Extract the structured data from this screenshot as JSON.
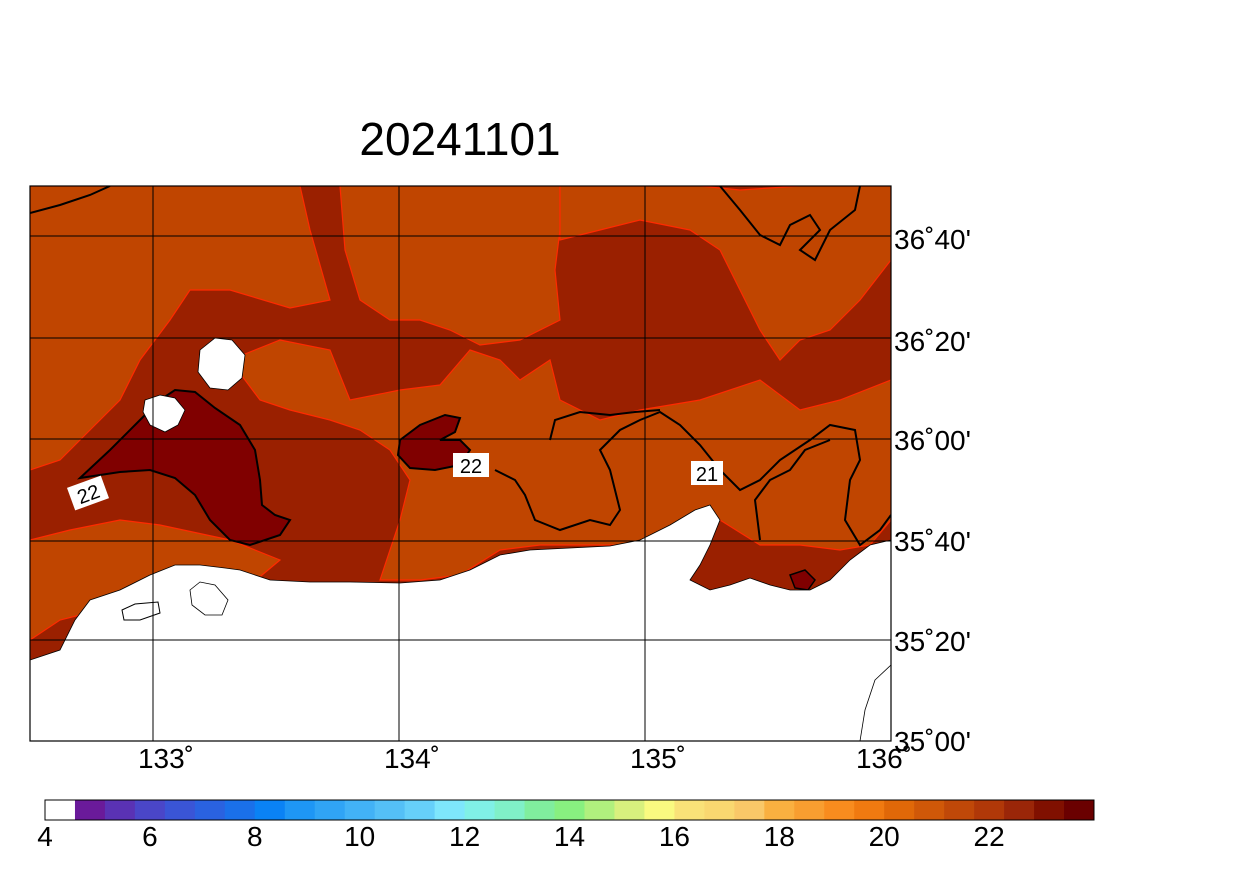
{
  "title": "20241101",
  "map": {
    "lon_ticks": [
      {
        "value": 133,
        "label": "133˚"
      },
      {
        "value": 134,
        "label": "134˚"
      },
      {
        "value": 135,
        "label": "135˚"
      },
      {
        "value": 136,
        "label": "136˚"
      }
    ],
    "lat_ticks": [
      {
        "value": 36.6667,
        "label": "36˚40'"
      },
      {
        "value": 36.3333,
        "label": "36˚20'"
      },
      {
        "value": 36.0,
        "label": "36˚00'"
      },
      {
        "value": 35.6667,
        "label": "35˚40'"
      },
      {
        "value": 35.3333,
        "label": "35˚20'"
      },
      {
        "value": 35.0,
        "label": "35˚00'"
      }
    ],
    "contour_labels": [
      "22",
      "22",
      "21"
    ]
  },
  "colorbar": {
    "ticks": [
      "4",
      "6",
      "8",
      "10",
      "12",
      "14",
      "16",
      "18",
      "20",
      "22"
    ],
    "colors": [
      "#ffffff",
      "#6a1a9a",
      "#5a32b4",
      "#4a46c8",
      "#3a55d6",
      "#2a62e0",
      "#1a70ea",
      "#0a82f5",
      "#1e96f5",
      "#30a4f5",
      "#42b2f6",
      "#54c0f7",
      "#66d0fa",
      "#7ee6fc",
      "#80f0e6",
      "#80f0c8",
      "#80ee9e",
      "#88f080",
      "#b0f07e",
      "#d8f07e",
      "#fafa80",
      "#fae278",
      "#fad870",
      "#fac868",
      "#fab040",
      "#f89e30",
      "#f88c1e",
      "#f07a10",
      "#e06808",
      "#d05808",
      "#c04808",
      "#b03808",
      "#9a2608",
      "#801000",
      "#6a0000"
    ]
  }
}
